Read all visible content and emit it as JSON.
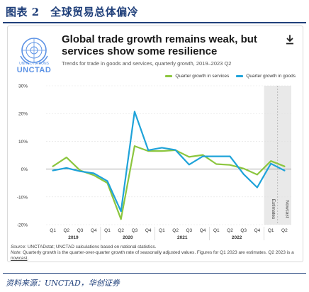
{
  "page": {
    "figure_title": "图表 2　全球贸易总体偏冷",
    "source_note": "资料来源：UNCTAD，华创证券"
  },
  "card": {
    "logo_caption": "UNITED NATIONS",
    "logo_name": "UNCTAD",
    "download_icon": "download-icon"
  },
  "notes": {
    "source_label": "Source:",
    "source_text": "UNCTADstat; UNCTAD calculations based on national statistics.",
    "note_label": "Note:",
    "note_text": "Quarterly growth is the quarter-over-quarter growth rate of seasonally adjusted values. Figures for Q1 2023 are estimates. Q2 2023 is a",
    "nowcast_link": "nowcast",
    "period": "."
  },
  "colors": {
    "services": "#8cc63f",
    "goods": "#1fa3d9",
    "shade": "#e9e9e9",
    "brand": "#1f3f7a"
  },
  "chart_data": {
    "type": "line",
    "title": "Global trade growth remains weak, but services show some resilience",
    "subtitle": "Trends for trade in goods and services, quarterly growth, 2019–2023 Q2",
    "x": [
      "Q1",
      "Q2",
      "Q3",
      "Q4",
      "Q1",
      "Q2",
      "Q3",
      "Q4",
      "Q1",
      "Q2",
      "Q3",
      "Q4",
      "Q1",
      "Q2",
      "Q3",
      "Q4",
      "Q1",
      "Q2"
    ],
    "year_groups": [
      {
        "label": "2019",
        "start": 0,
        "end": 3
      },
      {
        "label": "2020",
        "start": 4,
        "end": 7
      },
      {
        "label": "2021",
        "start": 8,
        "end": 11
      },
      {
        "label": "2022",
        "start": 12,
        "end": 15
      }
    ],
    "series": [
      {
        "name": "Quarter growth in services",
        "color": "#8cc63f",
        "values": [
          1.0,
          4.2,
          -0.5,
          -2.2,
          -5.0,
          -18.0,
          8.3,
          6.5,
          6.5,
          6.8,
          4.4,
          5.1,
          1.8,
          1.5,
          0.2,
          -2.0,
          2.9,
          1.0
        ]
      },
      {
        "name": "Quarter growth in goods",
        "color": "#1fa3d9",
        "values": [
          -0.5,
          0.4,
          -0.8,
          -1.5,
          -4.3,
          -15.2,
          20.7,
          6.8,
          7.7,
          6.9,
          1.6,
          4.6,
          4.6,
          4.6,
          -1.8,
          -6.6,
          2.0,
          -0.5
        ]
      }
    ],
    "ylim": [
      -20,
      30
    ],
    "yticks": [
      -20,
      -10,
      0,
      10,
      20,
      30
    ],
    "ytick_labels": [
      "-20%",
      "-10%",
      "0%",
      "10%",
      "20%",
      "30%"
    ],
    "estimate_labels": [
      "Estimates",
      "Nowcast"
    ],
    "estimate_start_index": 16,
    "grid": true,
    "legend_position": "top-right"
  }
}
